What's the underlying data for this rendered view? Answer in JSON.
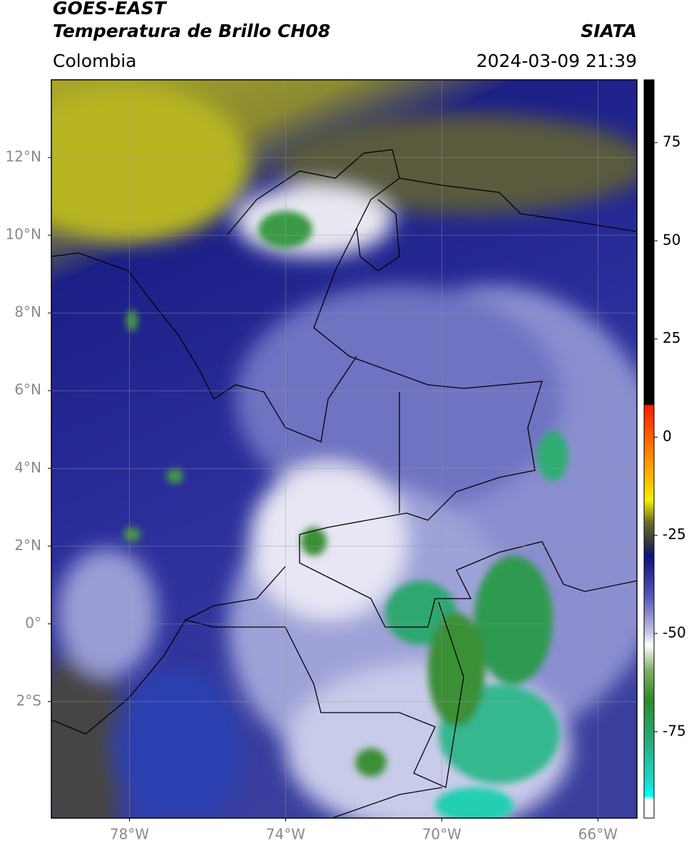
{
  "header": {
    "title_line1": "GOES-EAST",
    "title_line2": "Temperatura de Brillo CH08",
    "region": "Colombia",
    "source": "SIATA",
    "datetime": "2024-03-09 21:39"
  },
  "map": {
    "xlim": [
      -80,
      -65
    ],
    "ylim": [
      -5,
      14
    ],
    "lat_ticks": [
      {
        "value": 12,
        "label": "12°N"
      },
      {
        "value": 10,
        "label": "10°N"
      },
      {
        "value": 8,
        "label": "8°N"
      },
      {
        "value": 6,
        "label": "6°N"
      },
      {
        "value": 4,
        "label": "4°N"
      },
      {
        "value": 2,
        "label": "2°N"
      },
      {
        "value": 0,
        "label": "0°"
      },
      {
        "value": -2,
        "label": "2°S"
      }
    ],
    "lon_ticks": [
      {
        "value": -78,
        "label": "78°W"
      },
      {
        "value": -74,
        "label": "74°W"
      },
      {
        "value": -70,
        "label": "70°W"
      },
      {
        "value": -66,
        "label": "66°W"
      }
    ]
  },
  "colorbar": {
    "lim": [
      -97,
      91
    ],
    "ticks": [
      75,
      50,
      25,
      0,
      -25,
      -50,
      -75
    ]
  }
}
